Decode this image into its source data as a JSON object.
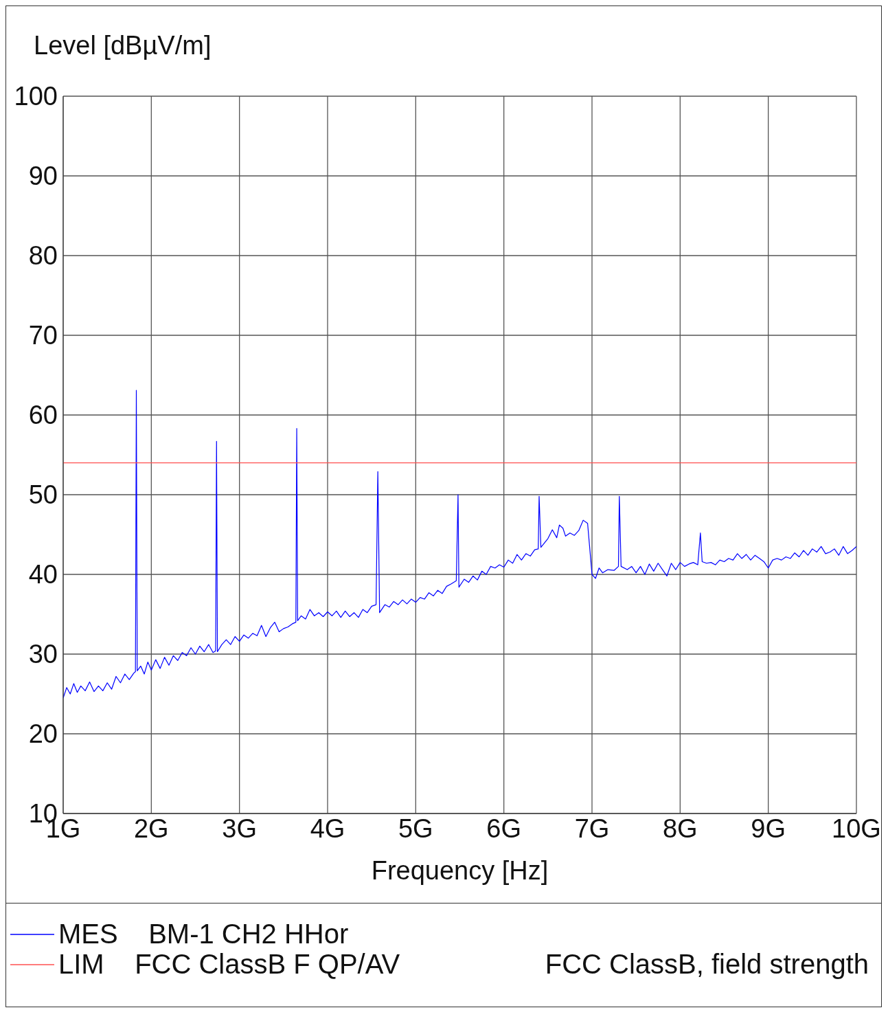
{
  "chart_data": {
    "type": "line",
    "xlabel": "Frequency [Hz]",
    "ylabel": "Level [dBµV/m]",
    "xlim": [
      1,
      10
    ],
    "xticks": [
      {
        "value": 1,
        "label": "1G"
      },
      {
        "value": 2,
        "label": "2G"
      },
      {
        "value": 3,
        "label": "3G"
      },
      {
        "value": 4,
        "label": "4G"
      },
      {
        "value": 5,
        "label": "5G"
      },
      {
        "value": 6,
        "label": "6G"
      },
      {
        "value": 7,
        "label": "7G"
      },
      {
        "value": 8,
        "label": "8G"
      },
      {
        "value": 9,
        "label": "9G"
      },
      {
        "value": 10,
        "label": "10G"
      }
    ],
    "ylim": [
      10,
      100
    ],
    "yticks": [
      10,
      20,
      30,
      40,
      50,
      60,
      70,
      80,
      90,
      100
    ],
    "grid": true,
    "legend": "bottom",
    "marker": "none",
    "line_style": "solid",
    "annotations": [
      "FCC ClassB, field strength"
    ],
    "series": [
      {
        "name": "MES    BM-1 CH2 HHor",
        "color": "#0000ff",
        "x": [
          1.0,
          1.04,
          1.08,
          1.12,
          1.16,
          1.2,
          1.25,
          1.3,
          1.35,
          1.4,
          1.45,
          1.5,
          1.55,
          1.6,
          1.65,
          1.7,
          1.75,
          1.8,
          1.82,
          1.83,
          1.84,
          1.88,
          1.92,
          1.96,
          2.0,
          2.05,
          2.1,
          2.15,
          2.2,
          2.25,
          2.3,
          2.35,
          2.4,
          2.45,
          2.5,
          2.55,
          2.6,
          2.65,
          2.7,
          2.73,
          2.74,
          2.75,
          2.8,
          2.85,
          2.9,
          2.95,
          3.0,
          3.05,
          3.1,
          3.15,
          3.2,
          3.25,
          3.3,
          3.35,
          3.4,
          3.45,
          3.5,
          3.55,
          3.6,
          3.64,
          3.65,
          3.66,
          3.7,
          3.75,
          3.8,
          3.85,
          3.9,
          3.95,
          4.0,
          4.05,
          4.1,
          4.15,
          4.2,
          4.25,
          4.3,
          4.35,
          4.4,
          4.45,
          4.5,
          4.55,
          4.57,
          4.59,
          4.65,
          4.7,
          4.75,
          4.8,
          4.85,
          4.9,
          4.95,
          5.0,
          5.05,
          5.1,
          5.15,
          5.2,
          5.25,
          5.3,
          5.35,
          5.4,
          5.46,
          5.48,
          5.49,
          5.55,
          5.6,
          5.65,
          5.7,
          5.75,
          5.8,
          5.85,
          5.9,
          5.95,
          6.0,
          6.05,
          6.1,
          6.15,
          6.2,
          6.25,
          6.3,
          6.35,
          6.39,
          6.4,
          6.42,
          6.45,
          6.5,
          6.55,
          6.6,
          6.63,
          6.67,
          6.7,
          6.75,
          6.8,
          6.85,
          6.9,
          6.95,
          7.0,
          7.04,
          7.08,
          7.12,
          7.18,
          7.25,
          7.3,
          7.31,
          7.33,
          7.4,
          7.45,
          7.5,
          7.55,
          7.6,
          7.65,
          7.7,
          7.75,
          7.8,
          7.85,
          7.9,
          7.95,
          8.0,
          8.05,
          8.1,
          8.15,
          8.2,
          8.23,
          8.25,
          8.3,
          8.35,
          8.4,
          8.45,
          8.5,
          8.55,
          8.6,
          8.65,
          8.7,
          8.75,
          8.8,
          8.85,
          8.9,
          8.95,
          9.0,
          9.05,
          9.1,
          9.15,
          9.2,
          9.25,
          9.3,
          9.35,
          9.4,
          9.45,
          9.5,
          9.55,
          9.6,
          9.65,
          9.7,
          9.75,
          9.8,
          9.85,
          9.9,
          9.95,
          10.0
        ],
        "values": [
          24.5,
          25.8,
          25.0,
          26.3,
          25.2,
          26.0,
          25.4,
          26.5,
          25.3,
          26.0,
          25.4,
          26.4,
          25.6,
          27.2,
          26.4,
          27.5,
          26.8,
          27.6,
          27.8,
          63.1,
          27.9,
          28.5,
          27.5,
          29.0,
          28.0,
          29.3,
          28.2,
          29.6,
          28.6,
          29.8,
          29.2,
          30.2,
          29.8,
          30.8,
          30.0,
          31.0,
          30.3,
          31.2,
          30.2,
          30.4,
          56.7,
          30.3,
          31.2,
          31.8,
          31.2,
          32.2,
          31.6,
          32.4,
          32.0,
          32.6,
          32.3,
          33.6,
          32.2,
          33.3,
          34.0,
          32.8,
          33.2,
          33.4,
          33.8,
          34.0,
          58.3,
          34.2,
          34.8,
          34.4,
          35.6,
          34.8,
          35.2,
          34.7,
          35.3,
          34.8,
          35.4,
          34.6,
          35.4,
          34.7,
          35.2,
          34.6,
          35.6,
          35.2,
          36.0,
          36.2,
          52.9,
          35.2,
          36.2,
          35.9,
          36.6,
          36.2,
          36.8,
          36.3,
          36.9,
          36.5,
          37.1,
          36.9,
          37.7,
          37.3,
          38.0,
          37.6,
          38.5,
          38.8,
          39.2,
          50.0,
          38.4,
          39.4,
          39.0,
          39.8,
          39.3,
          40.4,
          40.0,
          41.0,
          40.8,
          41.2,
          40.9,
          41.8,
          41.4,
          42.5,
          41.8,
          42.6,
          42.3,
          43.1,
          43.2,
          49.8,
          43.4,
          43.8,
          44.5,
          45.6,
          44.6,
          46.2,
          45.8,
          44.8,
          45.2,
          44.9,
          45.5,
          46.8,
          46.4,
          40.0,
          39.5,
          40.8,
          40.2,
          40.6,
          40.5,
          41.0,
          49.8,
          41.0,
          40.6,
          41.0,
          40.2,
          41.0,
          40.0,
          41.3,
          40.4,
          41.4,
          40.6,
          39.8,
          41.4,
          40.6,
          41.5,
          41.0,
          41.3,
          41.5,
          41.2,
          45.2,
          41.6,
          41.4,
          41.5,
          41.2,
          41.8,
          41.6,
          42.0,
          41.8,
          42.6,
          42.0,
          42.5,
          41.8,
          42.4,
          42.0,
          41.6,
          40.8,
          41.8,
          42.0,
          41.8,
          42.2,
          42.0,
          42.7,
          42.2,
          43.0,
          42.4,
          43.2,
          42.8,
          43.5,
          42.6,
          42.8,
          43.2,
          42.4,
          43.5,
          42.6,
          43.0,
          43.5
        ]
      },
      {
        "name": "LIM    FCC ClassB F QP/AV",
        "color": "#ff5050",
        "x": [
          1,
          10
        ],
        "values": [
          54,
          54
        ]
      }
    ]
  }
}
